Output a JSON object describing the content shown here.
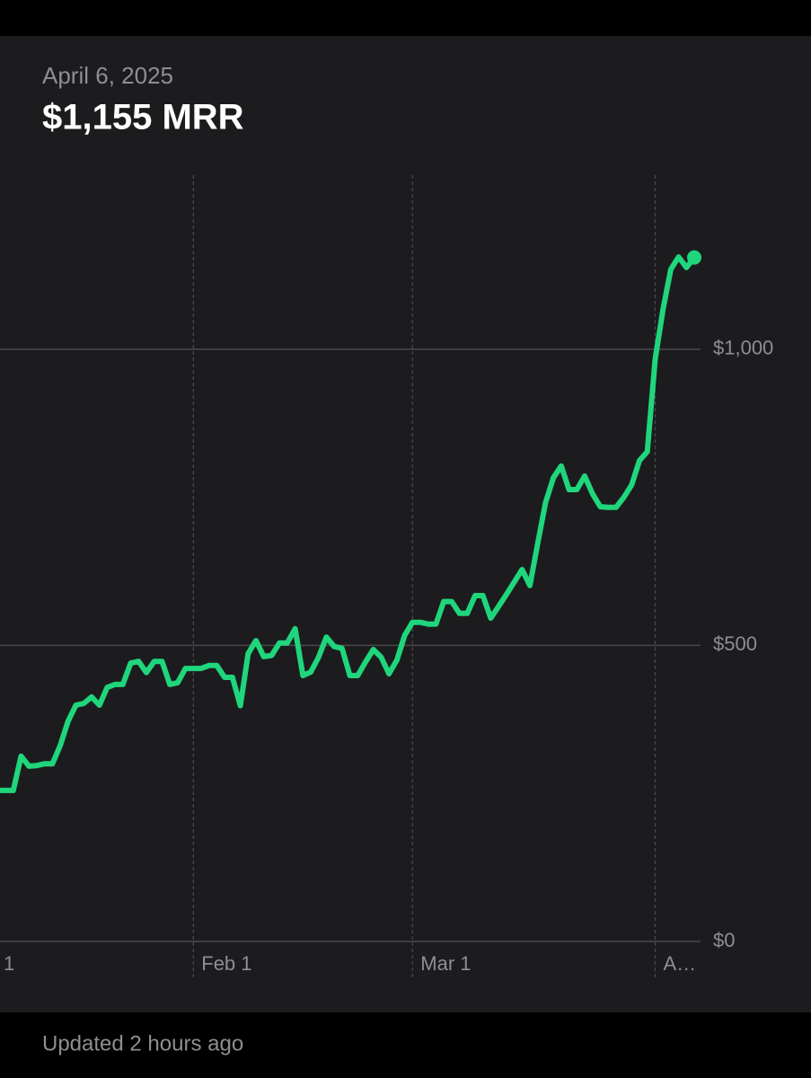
{
  "header": {
    "date": "April 6, 2025",
    "headline": "$1,155 MRR"
  },
  "footer": {
    "status": "Updated 2 hours ago"
  },
  "chart_data": {
    "type": "line",
    "color": "#1fd67c",
    "x": [
      6,
      7,
      8,
      9,
      10,
      11,
      12,
      13,
      14,
      15,
      16,
      17,
      18,
      19,
      20,
      21,
      22,
      23,
      24,
      25,
      26,
      27,
      28,
      29,
      30,
      31,
      32,
      33,
      34,
      35,
      36,
      37,
      38,
      39,
      40,
      41,
      42,
      43,
      44,
      45,
      46,
      47,
      48,
      49,
      50,
      51,
      52,
      53,
      54,
      55,
      56,
      57,
      58,
      59,
      60,
      61,
      62,
      63,
      64,
      65,
      66,
      67,
      68,
      69,
      70,
      71,
      72,
      73,
      74,
      75,
      76,
      77,
      78,
      79,
      80,
      81,
      82,
      83,
      84,
      85,
      86,
      87,
      88,
      89,
      90,
      91,
      92,
      93,
      94,
      95
    ],
    "values": [
      255,
      255,
      255,
      313,
      296,
      297,
      300,
      300,
      331,
      372,
      399,
      402,
      413,
      399,
      429,
      434,
      434,
      470,
      473,
      454,
      473,
      473,
      434,
      437,
      461,
      461,
      461,
      466,
      466,
      446,
      446,
      398,
      486,
      508,
      481,
      483,
      504,
      504,
      528,
      449,
      455,
      480,
      514,
      498,
      495,
      449,
      449,
      472,
      493,
      480,
      452,
      475,
      517,
      539,
      539,
      536,
      536,
      574,
      574,
      554,
      554,
      584,
      584,
      546,
      566,
      586,
      607,
      628,
      601,
      672,
      741,
      783,
      803,
      763,
      763,
      786,
      756,
      734,
      733,
      733,
      750,
      771,
      812,
      827,
      983,
      1067,
      1135,
      1156,
      1138,
      1155
    ],
    "xlim": [
      6.3,
      95.8
    ],
    "xticks": [
      {
        "value": 0,
        "label": "1"
      },
      {
        "value": 31,
        "label": "Feb 1"
      },
      {
        "value": 59,
        "label": "Mar 1"
      },
      {
        "value": 90,
        "label": "A…"
      }
    ],
    "ylim": [
      0,
      1294
    ],
    "yticks": [
      {
        "value": 0,
        "label": "$0"
      },
      {
        "value": 500,
        "label": "$500"
      },
      {
        "value": 1000,
        "label": "$1,000"
      }
    ],
    "grid": true
  }
}
